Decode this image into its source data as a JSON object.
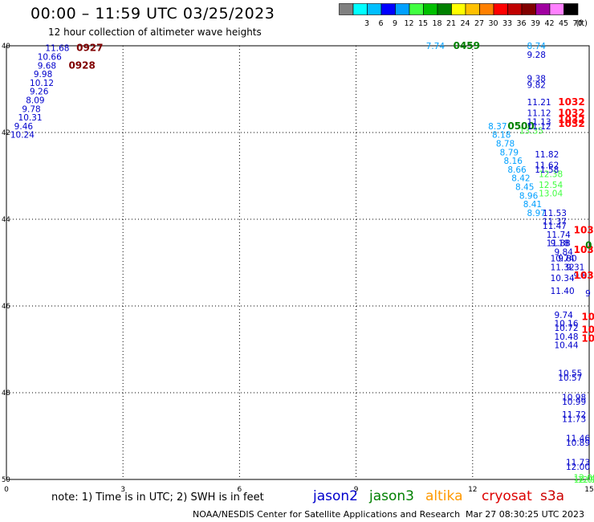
{
  "header": {
    "title": "00:00 – 11:59 UTC 03/25/2023",
    "subtitle": "12 hour collection of altimeter wave heights"
  },
  "color_scale": {
    "unit": "(ft)",
    "bins": [
      {
        "label": "",
        "color": "#808080"
      },
      {
        "label": "3",
        "color": "#00ffff"
      },
      {
        "label": "6",
        "color": "#00bfff"
      },
      {
        "label": "9",
        "color": "#0000ff"
      },
      {
        "label": "12",
        "color": "#00a0ff"
      },
      {
        "label": "15",
        "color": "#40ff40"
      },
      {
        "label": "18",
        "color": "#00c000"
      },
      {
        "label": "21",
        "color": "#008000"
      },
      {
        "label": "24",
        "color": "#ffff00"
      },
      {
        "label": "27",
        "color": "#ffc000"
      },
      {
        "label": "30",
        "color": "#ff8000"
      },
      {
        "label": "33",
        "color": "#ff0000"
      },
      {
        "label": "36",
        "color": "#c00000"
      },
      {
        "label": "39",
        "color": "#800000"
      },
      {
        "label": "42",
        "color": "#a000a0"
      },
      {
        "label": "45",
        "color": "#ff80ff"
      },
      {
        "label": "70",
        "color": "#000000"
      }
    ]
  },
  "footer": {
    "note": "note: 1) Time is in UTC; 2) SWH is in feet",
    "credit": "NOAA/NESDIS Center for Satellite Applications and Research",
    "timestamp": "Mar 27 08:30:25 UTC 2023",
    "satellites": [
      {
        "name": "jason2",
        "color": "#0000cc"
      },
      {
        "name": "jason3",
        "color": "#008000"
      },
      {
        "name": "altika",
        "color": "#ff9900"
      },
      {
        "name": "cryosat",
        "color": "#dd0000"
      },
      {
        "name": "s3a",
        "color": "#cc0000"
      }
    ]
  },
  "chart_data": {
    "type": "scatter",
    "x_ticks": [
      "0",
      "3",
      "6",
      "9",
      "12",
      "15"
    ],
    "y_ticks": [
      "40",
      "42",
      "44",
      "46",
      "48",
      "50"
    ],
    "xlim": [
      0,
      15
    ],
    "ylim": [
      40,
      50
    ],
    "y_inverted": true,
    "grid": "dotted",
    "series": [
      {
        "name": "track-left",
        "color": "#0000cc",
        "points": [
          {
            "x": 1.0,
            "y": 40.05,
            "label": "11.68"
          },
          {
            "x": 0.8,
            "y": 40.25,
            "label": "10.66"
          },
          {
            "x": 0.8,
            "y": 40.45,
            "label": "9.68"
          },
          {
            "x": 0.7,
            "y": 40.65,
            "label": "9.98"
          },
          {
            "x": 0.6,
            "y": 40.85,
            "label": "10.12"
          },
          {
            "x": 0.6,
            "y": 41.05,
            "label": "9.26"
          },
          {
            "x": 0.5,
            "y": 41.25,
            "label": "8.09"
          },
          {
            "x": 0.4,
            "y": 41.45,
            "label": "9.78"
          },
          {
            "x": 0.3,
            "y": 41.65,
            "label": "10.31"
          },
          {
            "x": 0.2,
            "y": 41.85,
            "label": "9.46"
          },
          {
            "x": 0.1,
            "y": 42.05,
            "label": "10.24"
          }
        ]
      },
      {
        "name": "track-left-times",
        "color": "#800000",
        "points": [
          {
            "x": 1.8,
            "y": 40.05,
            "label": "0927"
          },
          {
            "x": 1.6,
            "y": 40.45,
            "label": "0928"
          }
        ]
      },
      {
        "name": "track-mid-diagonal",
        "color": "#00a0ff",
        "points": [
          {
            "x": 10.8,
            "y": 40.0,
            "label": "7.74"
          },
          {
            "x": 12.4,
            "y": 41.85,
            "label": "8.37"
          },
          {
            "x": 12.5,
            "y": 42.05,
            "label": "8.18"
          },
          {
            "x": 12.6,
            "y": 42.25,
            "label": "8.78"
          },
          {
            "x": 12.7,
            "y": 42.45,
            "label": "8.79"
          },
          {
            "x": 12.8,
            "y": 42.65,
            "label": "8.16"
          },
          {
            "x": 12.9,
            "y": 42.85,
            "label": "8.66"
          },
          {
            "x": 13.0,
            "y": 43.05,
            "label": "8.42"
          },
          {
            "x": 13.1,
            "y": 43.25,
            "label": "8.45"
          },
          {
            "x": 13.2,
            "y": 43.45,
            "label": "8.96"
          },
          {
            "x": 13.3,
            "y": 43.65,
            "label": "8.41"
          },
          {
            "x": 13.4,
            "y": 43.85,
            "label": "8.97"
          }
        ]
      },
      {
        "name": "track-mid-diagonal-green",
        "color": "#40ff40",
        "points": [
          {
            "x": 13.2,
            "y": 41.95,
            "label": "13.35"
          },
          {
            "x": 13.7,
            "y": 42.95,
            "label": "12.38"
          },
          {
            "x": 13.7,
            "y": 43.2,
            "label": "12.54"
          },
          {
            "x": 13.7,
            "y": 43.4,
            "label": "13.04"
          }
        ]
      },
      {
        "name": "track-mid-times",
        "color": "#008000",
        "points": [
          {
            "x": 11.5,
            "y": 40.0,
            "label": "0459"
          },
          {
            "x": 12.9,
            "y": 41.85,
            "label": "0500"
          }
        ]
      },
      {
        "name": "track-right-top",
        "color": "#00a0ff",
        "points": [
          {
            "x": 13.4,
            "y": 40.0,
            "label": "8.74"
          }
        ]
      },
      {
        "name": "track-right",
        "color": "#0000cc",
        "points": [
          {
            "x": 13.4,
            "y": 40.2,
            "label": "9.28"
          },
          {
            "x": 13.4,
            "y": 40.75,
            "label": "9.38"
          },
          {
            "x": 13.4,
            "y": 40.9,
            "label": "9.82"
          },
          {
            "x": 13.4,
            "y": 41.3,
            "label": "11.21"
          },
          {
            "x": 13.4,
            "y": 41.55,
            "label": "11.12"
          },
          {
            "x": 13.4,
            "y": 41.75,
            "label": "11.13"
          },
          {
            "x": 13.4,
            "y": 41.85,
            "label": "11.12"
          },
          {
            "x": 13.6,
            "y": 42.5,
            "label": "11.82"
          },
          {
            "x": 13.6,
            "y": 42.75,
            "label": "11.62"
          },
          {
            "x": 13.6,
            "y": 42.85,
            "label": "11.58"
          },
          {
            "x": 13.8,
            "y": 43.85,
            "label": "11.53"
          },
          {
            "x": 13.8,
            "y": 44.05,
            "label": "11.37"
          },
          {
            "x": 13.8,
            "y": 44.15,
            "label": "11.47"
          },
          {
            "x": 13.9,
            "y": 44.35,
            "label": "11.74"
          },
          {
            "x": 13.9,
            "y": 44.55,
            "label": "11.88"
          },
          {
            "x": 14.0,
            "y": 44.55,
            "label": "9.18"
          },
          {
            "x": 14.1,
            "y": 44.75,
            "label": "9.84"
          },
          {
            "x": 14.0,
            "y": 44.9,
            "label": "10.74"
          },
          {
            "x": 14.2,
            "y": 44.9,
            "label": "9.80"
          },
          {
            "x": 14.0,
            "y": 45.1,
            "label": "11.32"
          },
          {
            "x": 14.4,
            "y": 45.1,
            "label": "9.31"
          },
          {
            "x": 14.0,
            "y": 45.35,
            "label": "10.34"
          },
          {
            "x": 14.6,
            "y": 45.3,
            "label": "9.8"
          },
          {
            "x": 14.0,
            "y": 45.65,
            "label": "11.40"
          },
          {
            "x": 14.9,
            "y": 45.7,
            "label": "9"
          },
          {
            "x": 14.1,
            "y": 46.2,
            "label": "9.74"
          },
          {
            "x": 14.1,
            "y": 46.4,
            "label": "10.16"
          },
          {
            "x": 14.1,
            "y": 46.5,
            "label": "10.72"
          },
          {
            "x": 14.1,
            "y": 46.7,
            "label": "10.48"
          },
          {
            "x": 14.1,
            "y": 46.9,
            "label": "10.44"
          },
          {
            "x": 14.2,
            "y": 47.55,
            "label": "10.55"
          },
          {
            "x": 14.2,
            "y": 47.65,
            "label": "10.57"
          },
          {
            "x": 14.3,
            "y": 48.1,
            "label": "10.98"
          },
          {
            "x": 14.3,
            "y": 48.2,
            "label": "10.99"
          },
          {
            "x": 14.3,
            "y": 48.5,
            "label": "11.72"
          },
          {
            "x": 14.3,
            "y": 48.6,
            "label": "11.73"
          },
          {
            "x": 14.4,
            "y": 49.05,
            "label": "11.46"
          },
          {
            "x": 14.4,
            "y": 49.15,
            "label": "10.89"
          },
          {
            "x": 14.4,
            "y": 49.6,
            "label": "11.73"
          },
          {
            "x": 14.4,
            "y": 49.7,
            "label": "12.00"
          }
        ]
      },
      {
        "name": "track-right-green",
        "color": "#40ff40",
        "points": [
          {
            "x": 14.6,
            "y": 49.95,
            "label": "12.08"
          },
          {
            "x": 14.6,
            "y": 50.0,
            "label": "12.08"
          },
          {
            "x": 14.7,
            "y": 50.0,
            "label": "12.93"
          }
        ]
      },
      {
        "name": "track-right-times",
        "color": "#ff0000",
        "points": [
          {
            "x": 14.2,
            "y": 41.3,
            "label": "1032"
          },
          {
            "x": 14.2,
            "y": 41.55,
            "label": "1032"
          },
          {
            "x": 14.2,
            "y": 41.7,
            "label": "1032"
          },
          {
            "x": 14.2,
            "y": 41.8,
            "label": "1032"
          },
          {
            "x": 14.6,
            "y": 44.25,
            "label": "1031"
          },
          {
            "x": 14.6,
            "y": 44.7,
            "label": "103"
          },
          {
            "x": 14.6,
            "y": 45.3,
            "label": "103"
          },
          {
            "x": 14.8,
            "y": 46.25,
            "label": "10"
          },
          {
            "x": 14.8,
            "y": 46.55,
            "label": "10"
          },
          {
            "x": 14.8,
            "y": 46.75,
            "label": "10"
          }
        ]
      },
      {
        "name": "track-right-times-green",
        "color": "#008000",
        "points": [
          {
            "x": 14.9,
            "y": 44.6,
            "label": "0"
          }
        ]
      }
    ]
  }
}
